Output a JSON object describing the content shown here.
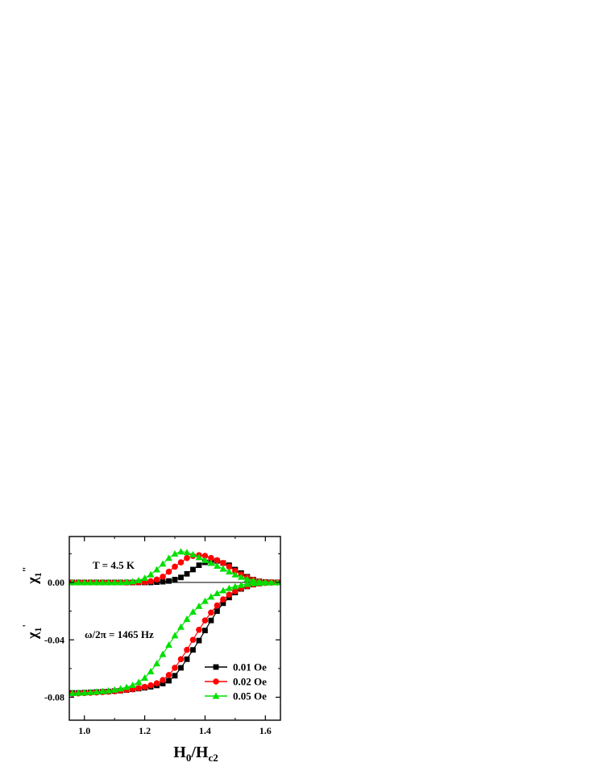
{
  "chart_data": {
    "type": "line",
    "xlabel": {
      "main": "H",
      "sub1": "0",
      "mid": "/H",
      "sub2": "c2"
    },
    "ylabel_upper": {
      "main": "χ",
      "sub": "1",
      "sup": "\""
    },
    "ylabel_lower": {
      "main": "χ",
      "sub": "1",
      "sup": "'"
    },
    "xlim": [
      0.95,
      1.65
    ],
    "ylim": [
      -0.096,
      0.032
    ],
    "x_ticks": [
      1.0,
      1.2,
      1.4,
      1.6
    ],
    "x_tick_labels": [
      "1.0",
      "1.2",
      "1.4",
      "1.6"
    ],
    "y_ticks": [
      0.0,
      -0.04,
      -0.08
    ],
    "y_tick_labels": [
      "0.00",
      "-0.04",
      "-0.08"
    ],
    "annotations": [
      "T = 4.5 K",
      "ω/2π = 1465 Hz"
    ],
    "legend_position": "lower-right",
    "x": [
      0.96,
      0.98,
      1.0,
      1.02,
      1.04,
      1.06,
      1.08,
      1.1,
      1.12,
      1.14,
      1.16,
      1.18,
      1.2,
      1.22,
      1.24,
      1.26,
      1.28,
      1.3,
      1.32,
      1.34,
      1.36,
      1.38,
      1.4,
      1.42,
      1.44,
      1.46,
      1.48,
      1.5,
      1.52,
      1.54,
      1.56,
      1.58,
      1.6,
      1.62,
      1.64
    ],
    "series": [
      {
        "name": "0.01 Oe",
        "color": "#000000",
        "marker": "square",
        "chi_imag": [
          0,
          0,
          0,
          0,
          0,
          0,
          0,
          0,
          0,
          0,
          0,
          0,
          0,
          0,
          0.0002,
          0.0005,
          0.001,
          0.002,
          0.0035,
          0.006,
          0.009,
          0.012,
          0.014,
          0.015,
          0.015,
          0.0135,
          0.012,
          0.009,
          0.0065,
          0.004,
          0.002,
          0.0008,
          0.0003,
          0.0001,
          0
        ],
        "chi_real": [
          -0.077,
          -0.077,
          -0.0768,
          -0.0766,
          -0.0764,
          -0.0762,
          -0.076,
          -0.0757,
          -0.0754,
          -0.075,
          -0.0745,
          -0.074,
          -0.0734,
          -0.0727,
          -0.0718,
          -0.0705,
          -0.0685,
          -0.065,
          -0.0595,
          -0.0535,
          -0.047,
          -0.0405,
          -0.0335,
          -0.0265,
          -0.02,
          -0.0145,
          -0.0105,
          -0.007,
          -0.0045,
          -0.0028,
          -0.0015,
          -0.0007,
          -0.0002,
          -0.0001,
          0
        ]
      },
      {
        "name": "0.02 Oe",
        "color": "#ff0000",
        "marker": "circle",
        "chi_imag": [
          0,
          0,
          0,
          0,
          0,
          0,
          0,
          0,
          0,
          0,
          0,
          0,
          0.0003,
          0.0008,
          0.002,
          0.004,
          0.0075,
          0.011,
          0.014,
          0.017,
          0.0185,
          0.019,
          0.0185,
          0.017,
          0.0155,
          0.0135,
          0.011,
          0.008,
          0.0055,
          0.0035,
          0.0018,
          0.0007,
          0.0002,
          0.0001,
          0
        ],
        "chi_real": [
          -0.0775,
          -0.0773,
          -0.0771,
          -0.0769,
          -0.0767,
          -0.0764,
          -0.0761,
          -0.0758,
          -0.0754,
          -0.0749,
          -0.0744,
          -0.0737,
          -0.0728,
          -0.0717,
          -0.0703,
          -0.068,
          -0.0645,
          -0.0595,
          -0.0535,
          -0.047,
          -0.04,
          -0.033,
          -0.0265,
          -0.021,
          -0.016,
          -0.0118,
          -0.0085,
          -0.006,
          -0.004,
          -0.0025,
          -0.0014,
          -0.0007,
          -0.0003,
          -0.0001,
          0
        ]
      },
      {
        "name": "0.05 Oe",
        "color": "#00e000",
        "marker": "triangle",
        "chi_imag": [
          0,
          0,
          0,
          0,
          0,
          0,
          0,
          0,
          0,
          0.0003,
          0.0007,
          0.0015,
          0.003,
          0.0055,
          0.009,
          0.013,
          0.017,
          0.02,
          0.0215,
          0.021,
          0.0195,
          0.0175,
          0.0155,
          0.0135,
          0.0115,
          0.0095,
          0.0075,
          0.0055,
          0.0038,
          0.0024,
          0.0014,
          0.0007,
          0.0003,
          0.0001,
          0
        ],
        "chi_real": [
          -0.0772,
          -0.077,
          -0.0768,
          -0.0765,
          -0.0762,
          -0.0758,
          -0.0754,
          -0.0748,
          -0.074,
          -0.073,
          -0.0716,
          -0.0695,
          -0.0665,
          -0.062,
          -0.0565,
          -0.05,
          -0.0435,
          -0.037,
          -0.031,
          -0.0255,
          -0.0205,
          -0.0165,
          -0.013,
          -0.01,
          -0.0076,
          -0.0056,
          -0.004,
          -0.0028,
          -0.0018,
          -0.0011,
          -0.0006,
          -0.0003,
          -0.0001,
          0,
          0
        ]
      }
    ]
  }
}
